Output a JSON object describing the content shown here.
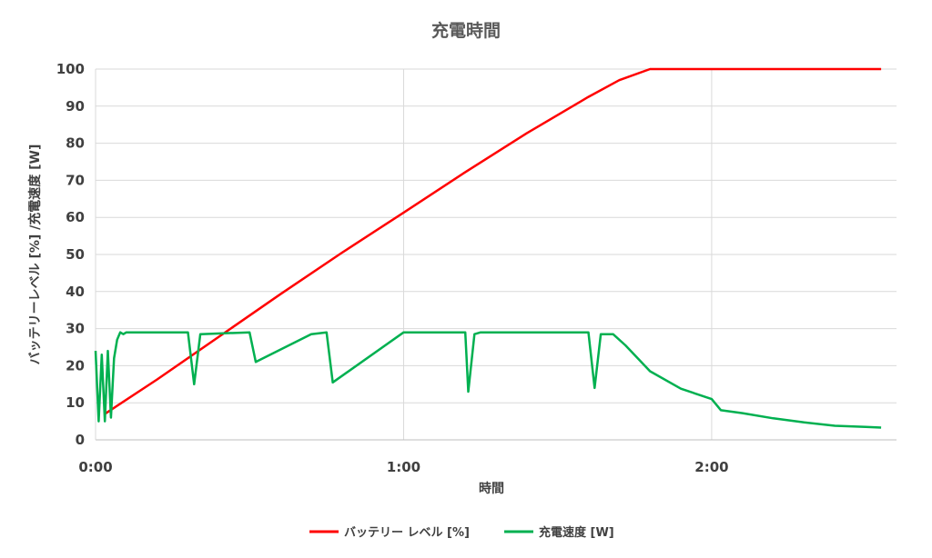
{
  "chart_data": {
    "type": "line",
    "title": "充電時間",
    "xlabel": "時間",
    "ylabel": "バッテリーレベル [%] /充電速度 [W]",
    "x_unit": "hours",
    "xlim": [
      0,
      2.6
    ],
    "ylim": [
      0,
      100
    ],
    "x_ticks": [
      {
        "value": 0,
        "label": "0:00"
      },
      {
        "value": 1,
        "label": "1:00"
      },
      {
        "value": 2,
        "label": "2:00"
      }
    ],
    "y_ticks": [
      0,
      10,
      20,
      30,
      40,
      50,
      60,
      70,
      80,
      90,
      100
    ],
    "grid": true,
    "legend_position": "bottom",
    "series": [
      {
        "name": "バッテリー レベル [%]",
        "color": "#ff0000",
        "x": [
          0.03,
          0.2,
          0.4,
          0.6,
          0.8,
          1.0,
          1.2,
          1.4,
          1.6,
          1.7,
          1.8,
          1.9,
          2.0,
          2.1,
          2.2,
          2.3,
          2.4,
          2.45,
          2.55
        ],
        "y": [
          7,
          16.3,
          27.8,
          39.3,
          50.5,
          61.3,
          72.2,
          82.7,
          92.5,
          97.0,
          100.0,
          100.0,
          100.0,
          100.0,
          100.0,
          100.0,
          100.0,
          100.0,
          100.0
        ]
      },
      {
        "name": "充電速度 [W]",
        "color": "#00b050",
        "x": [
          0.0,
          0.01,
          0.02,
          0.03,
          0.04,
          0.05,
          0.06,
          0.07,
          0.08,
          0.09,
          0.1,
          0.3,
          0.32,
          0.34,
          0.5,
          0.52,
          0.7,
          0.75,
          0.77,
          1.0,
          1.2,
          1.21,
          1.23,
          1.25,
          1.6,
          1.62,
          1.64,
          1.68,
          1.72,
          1.8,
          1.9,
          2.0,
          2.03,
          2.1,
          2.2,
          2.3,
          2.4,
          2.5,
          2.55
        ],
        "y": [
          24,
          5,
          23,
          5,
          24,
          6,
          22,
          27,
          29,
          28.5,
          29,
          29,
          15,
          28.5,
          29,
          21,
          28.5,
          29,
          15.5,
          29,
          29,
          13,
          28.5,
          29,
          29,
          14,
          28.5,
          28.5,
          25.5,
          18.5,
          13.8,
          11,
          8,
          7.2,
          5.8,
          4.7,
          3.8,
          3.5,
          3.3
        ]
      }
    ]
  }
}
